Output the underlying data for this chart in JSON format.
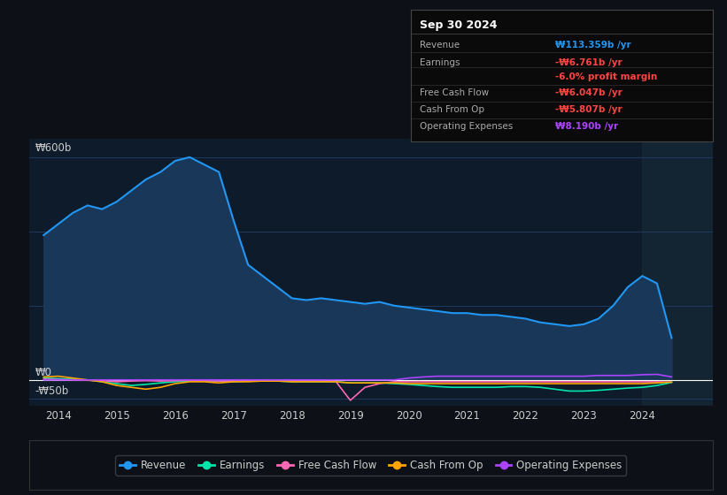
{
  "bg_color": "#0d1117",
  "plot_bg_color": "#0d1b2a",
  "grid_color": "#1e3a5f",
  "text_color": "#cccccc",
  "title_color": "#ffffff",
  "ylabel_text": "₩600b",
  "y0_text": "₩0",
  "yn50_text": "-₩50b",
  "x_ticks": [
    2014,
    2015,
    2016,
    2017,
    2018,
    2019,
    2020,
    2021,
    2022,
    2023,
    2024
  ],
  "ylim": [
    -70,
    650
  ],
  "revenue": {
    "years": [
      2013.75,
      2014.0,
      2014.25,
      2014.5,
      2014.75,
      2015.0,
      2015.25,
      2015.5,
      2015.75,
      2016.0,
      2016.25,
      2016.5,
      2016.75,
      2017.0,
      2017.25,
      2017.5,
      2017.75,
      2018.0,
      2018.25,
      2018.5,
      2018.75,
      2019.0,
      2019.25,
      2019.5,
      2019.75,
      2020.0,
      2020.25,
      2020.5,
      2020.75,
      2021.0,
      2021.25,
      2021.5,
      2021.75,
      2022.0,
      2022.25,
      2022.5,
      2022.75,
      2023.0,
      2023.25,
      2023.5,
      2023.75,
      2024.0,
      2024.25,
      2024.5
    ],
    "values": [
      390,
      420,
      450,
      470,
      460,
      480,
      510,
      540,
      560,
      590,
      600,
      580,
      560,
      430,
      310,
      280,
      250,
      220,
      215,
      220,
      215,
      210,
      205,
      210,
      200,
      195,
      190,
      185,
      180,
      180,
      175,
      175,
      170,
      165,
      155,
      150,
      145,
      150,
      165,
      200,
      250,
      280,
      260,
      113
    ],
    "color": "#2196f3",
    "fill_color": "#1a3a5c",
    "label": "Revenue"
  },
  "earnings": {
    "years": [
      2013.75,
      2014.0,
      2014.25,
      2014.5,
      2014.75,
      2015.0,
      2015.25,
      2015.5,
      2015.75,
      2016.0,
      2016.25,
      2016.5,
      2016.75,
      2017.0,
      2017.25,
      2017.5,
      2017.75,
      2018.0,
      2018.25,
      2018.5,
      2018.75,
      2019.0,
      2019.25,
      2019.5,
      2019.75,
      2020.0,
      2020.25,
      2020.5,
      2020.75,
      2021.0,
      2021.25,
      2021.5,
      2021.75,
      2022.0,
      2022.25,
      2022.5,
      2022.75,
      2023.0,
      2023.25,
      2023.5,
      2023.75,
      2024.0,
      2024.25,
      2024.5
    ],
    "values": [
      5,
      3,
      2,
      0,
      -5,
      -10,
      -15,
      -12,
      -8,
      -5,
      -3,
      -2,
      -3,
      -5,
      -3,
      -2,
      -3,
      -5,
      -5,
      -5,
      -5,
      -8,
      -8,
      -8,
      -10,
      -12,
      -15,
      -18,
      -20,
      -20,
      -20,
      -20,
      -18,
      -18,
      -20,
      -25,
      -30,
      -30,
      -28,
      -25,
      -22,
      -20,
      -15,
      -6.761
    ],
    "color": "#00e5aa",
    "label": "Earnings"
  },
  "free_cash_flow": {
    "years": [
      2013.75,
      2014.0,
      2014.25,
      2014.5,
      2014.75,
      2015.0,
      2015.25,
      2015.5,
      2015.75,
      2016.0,
      2016.25,
      2016.5,
      2016.75,
      2017.0,
      2017.25,
      2017.5,
      2017.75,
      2018.0,
      2018.25,
      2018.5,
      2018.75,
      2019.0,
      2019.25,
      2019.5,
      2019.75,
      2020.0,
      2020.25,
      2020.5,
      2020.75,
      2021.0,
      2021.25,
      2021.5,
      2021.75,
      2022.0,
      2022.25,
      2022.5,
      2022.75,
      2023.0,
      2023.25,
      2023.5,
      2023.75,
      2024.0,
      2024.25,
      2024.5
    ],
    "values": [
      2,
      1,
      0,
      -1,
      -2,
      -5,
      -3,
      -2,
      -3,
      -2,
      -1,
      -2,
      -3,
      -3,
      -2,
      -3,
      -3,
      -3,
      -3,
      -3,
      -4,
      -55,
      -20,
      -10,
      -5,
      -5,
      -5,
      -5,
      -5,
      -5,
      -5,
      -5,
      -5,
      -5,
      -5,
      -5,
      -5,
      -5,
      -5,
      -5,
      -5,
      -5,
      -5,
      -6.047
    ],
    "color": "#ff69b4",
    "label": "Free Cash Flow"
  },
  "cash_from_op": {
    "years": [
      2013.75,
      2014.0,
      2014.25,
      2014.5,
      2014.75,
      2015.0,
      2015.25,
      2015.5,
      2015.75,
      2016.0,
      2016.25,
      2016.5,
      2016.75,
      2017.0,
      2017.25,
      2017.5,
      2017.75,
      2018.0,
      2018.25,
      2018.5,
      2018.75,
      2019.0,
      2019.25,
      2019.5,
      2019.75,
      2020.0,
      2020.25,
      2020.5,
      2020.75,
      2021.0,
      2021.25,
      2021.5,
      2021.75,
      2022.0,
      2022.25,
      2022.5,
      2022.75,
      2023.0,
      2023.25,
      2023.5,
      2023.75,
      2024.0,
      2024.25,
      2024.5
    ],
    "values": [
      8,
      10,
      5,
      0,
      -5,
      -15,
      -20,
      -25,
      -20,
      -10,
      -5,
      -5,
      -8,
      -5,
      -5,
      -3,
      -3,
      -5,
      -5,
      -5,
      -5,
      -8,
      -8,
      -8,
      -8,
      -10,
      -10,
      -10,
      -10,
      -10,
      -10,
      -10,
      -10,
      -10,
      -10,
      -10,
      -10,
      -10,
      -10,
      -10,
      -10,
      -10,
      -8,
      -5.807
    ],
    "color": "#ffa500",
    "label": "Cash From Op"
  },
  "operating_expenses": {
    "years": [
      2013.75,
      2014.0,
      2014.25,
      2014.5,
      2014.75,
      2015.0,
      2015.25,
      2015.5,
      2015.75,
      2016.0,
      2016.25,
      2016.5,
      2016.75,
      2017.0,
      2017.25,
      2017.5,
      2017.75,
      2018.0,
      2018.25,
      2018.5,
      2018.75,
      2019.0,
      2019.25,
      2019.5,
      2019.75,
      2020.0,
      2020.25,
      2020.5,
      2020.75,
      2021.0,
      2021.25,
      2021.5,
      2021.75,
      2022.0,
      2022.25,
      2022.5,
      2022.75,
      2023.0,
      2023.25,
      2023.5,
      2023.75,
      2024.0,
      2024.25,
      2024.5
    ],
    "values": [
      0,
      0,
      0,
      0,
      0,
      0,
      0,
      0,
      0,
      0,
      0,
      0,
      0,
      0,
      0,
      0,
      0,
      0,
      0,
      0,
      0,
      0,
      0,
      0,
      0,
      5,
      8,
      10,
      10,
      10,
      10,
      10,
      10,
      10,
      10,
      10,
      10,
      10,
      12,
      12,
      12,
      14,
      15,
      8.19
    ],
    "color": "#aa44ff",
    "label": "Operating Expenses"
  },
  "info_box": {
    "title": "Sep 30 2024",
    "rows": [
      {
        "label": "Revenue",
        "value": "₩113.359b /yr",
        "value_color": "#2196f3"
      },
      {
        "label": "Earnings",
        "value": "-₩6.761b /yr",
        "value_color": "#ff4444"
      },
      {
        "label": "",
        "value": "-6.0% profit margin",
        "value_color": "#ff4444"
      },
      {
        "label": "Free Cash Flow",
        "value": "-₩6.047b /yr",
        "value_color": "#ff4444"
      },
      {
        "label": "Cash From Op",
        "value": "-₩5.807b /yr",
        "value_color": "#ff4444"
      },
      {
        "label": "Operating Expenses",
        "value": "₩8.190b /yr",
        "value_color": "#aa44ff"
      }
    ]
  },
  "legend_items": [
    {
      "label": "Revenue",
      "color": "#2196f3"
    },
    {
      "label": "Earnings",
      "color": "#00e5aa"
    },
    {
      "label": "Free Cash Flow",
      "color": "#ff69b4"
    },
    {
      "label": "Cash From Op",
      "color": "#ffa500"
    },
    {
      "label": "Operating Expenses",
      "color": "#aa44ff"
    }
  ]
}
